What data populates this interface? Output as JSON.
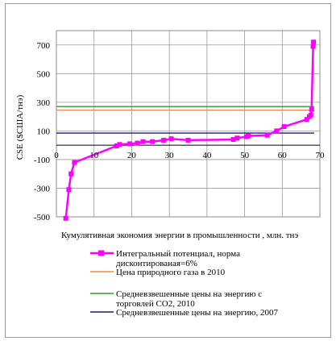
{
  "chart_data": {
    "type": "line",
    "title": "",
    "xlabel": "Кумулятивная экономия энергии в промышленности , млн. тнэ",
    "ylabel": "CSE ($США/тнэ)",
    "xlim": [
      0,
      70
    ],
    "ylim": [
      -500,
      800
    ],
    "x_ticks": [
      "0",
      "10",
      "20",
      "30",
      "40",
      "50",
      "60",
      "70"
    ],
    "y_ticks": [
      "-500",
      "-300",
      "-100",
      "100",
      "300",
      "500",
      "700"
    ],
    "grid": true,
    "legend_position": "bottom",
    "series": [
      {
        "name": "Интегральный потенциал, норма дисконтированая=6%",
        "color": "#ff00ff",
        "marker": "square",
        "x": [
          2.5,
          3.3,
          3.9,
          4.8,
          16,
          16.8,
          19.5,
          21.5,
          23,
          25.5,
          28.5,
          30.5,
          35,
          47,
          48,
          50.5,
          51,
          56,
          58.5,
          60.5,
          66.5,
          67.2,
          67.6,
          67.8,
          68.2,
          68.3
        ],
        "y": [
          -510,
          -310,
          -200,
          -120,
          -5,
          5,
          10,
          15,
          25,
          25,
          35,
          45,
          35,
          40,
          50,
          60,
          65,
          70,
          100,
          130,
          180,
          200,
          210,
          250,
          690,
          720
        ]
      },
      {
        "name": "Цена природного газа в 2010",
        "color": "#e8884a",
        "x": [
          0,
          68.5
        ],
        "y": [
          245,
          245
        ]
      },
      {
        "name": "Средневзвешенные цены на энергию с торговлей СО2, 2010",
        "color": "#2e9a2e",
        "x": [
          0,
          68.5
        ],
        "y": [
          270,
          270
        ]
      },
      {
        "name": "Средневзвешенные цены на энергию, 2007",
        "color": "#1c1c7c",
        "x": [
          0,
          68.5
        ],
        "y": [
          85,
          85
        ]
      }
    ],
    "legend_labels": {
      "s0_line1": "Интегральный потенциал, норма",
      "s0_line2": "дисконтированая=6%",
      "s1": "Цена природного газа в 2010",
      "s2_line1": "Средневзвешенные цены на энергию с",
      "s2_line2": "торговлей СО2, 2010",
      "s3": "Средневзвешенные цены на энергию, 2007"
    }
  }
}
